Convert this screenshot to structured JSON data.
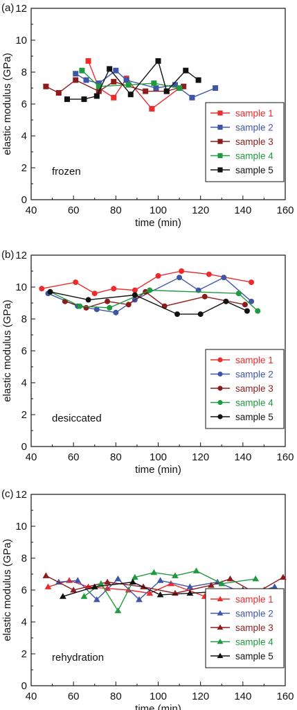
{
  "chart_data": [
    {
      "type": "line",
      "panel_label": "(a)",
      "annotation": "frozen",
      "marker": "square",
      "xlabel": "time (min)",
      "ylabel": "elastic modulus (GPa)",
      "xlim": [
        40,
        160
      ],
      "ylim": [
        0,
        12
      ],
      "xticks": [
        "40",
        "60",
        "80",
        "100",
        "120",
        "140",
        "160"
      ],
      "yticks": [
        "0",
        "2",
        "4",
        "6",
        "8",
        "10",
        "12"
      ],
      "legend_position": "bottom-right",
      "series": [
        {
          "name": "sample 1",
          "color": "#ee2b2b",
          "x": [
            67,
            72,
            79,
            85,
            97,
            110
          ],
          "y": [
            8.7,
            7.0,
            6.4,
            7.6,
            5.7,
            7.0
          ]
        },
        {
          "name": "sample 2",
          "color": "#3f56a8",
          "x": [
            61,
            66,
            72,
            80,
            85,
            99,
            108,
            116,
            127
          ],
          "y": [
            7.9,
            7.5,
            7.3,
            8.1,
            7.5,
            7.0,
            7.2,
            6.4,
            7.0
          ]
        },
        {
          "name": "sample 3",
          "color": "#8b1c1c",
          "x": [
            47,
            53,
            61,
            72,
            79,
            94,
            104,
            112
          ],
          "y": [
            7.1,
            6.7,
            7.5,
            6.8,
            7.4,
            6.8,
            6.8,
            7.1
          ]
        },
        {
          "name": "sample 4",
          "color": "#1f9a3f",
          "x": [
            64,
            72,
            86,
            98,
            110
          ],
          "y": [
            8.1,
            7.1,
            7.2,
            7.3,
            7.0
          ]
        },
        {
          "name": "sample 5",
          "color": "#111111",
          "x": [
            57,
            65,
            71,
            77,
            87,
            100,
            104,
            113,
            119
          ],
          "y": [
            6.3,
            6.3,
            6.5,
            8.2,
            6.6,
            8.7,
            6.8,
            8.1,
            7.5
          ]
        }
      ]
    },
    {
      "type": "line",
      "panel_label": "(b)",
      "annotation": "desiccated",
      "marker": "circle",
      "xlabel": "time (min)",
      "ylabel": "elastic modulus (GPa)",
      "xlim": [
        40,
        160
      ],
      "ylim": [
        0,
        12
      ],
      "xticks": [
        "40",
        "60",
        "80",
        "100",
        "120",
        "140",
        "160"
      ],
      "yticks": [
        "0",
        "2",
        "4",
        "6",
        "8",
        "10",
        "12"
      ],
      "legend_position": "bottom-right",
      "series": [
        {
          "name": "sample 1",
          "color": "#ee2b2b",
          "x": [
            45,
            61,
            70,
            79,
            89,
            100,
            111,
            124,
            144
          ],
          "y": [
            9.9,
            10.3,
            9.6,
            9.9,
            9.8,
            10.7,
            11.0,
            10.8,
            10.3
          ]
        },
        {
          "name": "sample 2",
          "color": "#3f56a8",
          "x": [
            48,
            62,
            71,
            80,
            89,
            110,
            119,
            131,
            144
          ],
          "y": [
            9.6,
            8.8,
            8.6,
            8.4,
            9.2,
            10.6,
            9.8,
            10.6,
            9.1
          ]
        },
        {
          "name": "sample 3",
          "color": "#8b1c1c",
          "x": [
            56,
            66,
            76,
            86,
            94,
            103,
            122,
            141
          ],
          "y": [
            9.1,
            8.7,
            9.1,
            8.9,
            9.7,
            8.8,
            9.4,
            8.9
          ]
        },
        {
          "name": "sample 4",
          "color": "#1f9a3f",
          "x": [
            49,
            63,
            77,
            96,
            138,
            147
          ],
          "y": [
            9.7,
            8.8,
            8.7,
            9.8,
            9.6,
            8.5
          ]
        },
        {
          "name": "sample 5",
          "color": "#111111",
          "x": [
            49,
            67,
            89,
            109,
            120,
            132,
            142
          ],
          "y": [
            9.7,
            9.2,
            9.5,
            8.3,
            8.3,
            9.1,
            8.5
          ]
        }
      ]
    },
    {
      "type": "line",
      "panel_label": "(c)",
      "annotation": "rehydration",
      "marker": "triangle",
      "xlabel": "time (min)",
      "ylabel": "elastic modulus (GPa)",
      "xlim": [
        40,
        160
      ],
      "ylim": [
        0,
        12
      ],
      "xticks": [
        "40",
        "60",
        "80",
        "100",
        "120",
        "140",
        "160"
      ],
      "yticks": [
        "0",
        "2",
        "4",
        "6",
        "8",
        "10",
        "12"
      ],
      "legend_position": "bottom-right",
      "series": [
        {
          "name": "sample 1",
          "color": "#ee2b2b",
          "x": [
            48,
            58,
            67,
            76,
            86,
            96,
            106,
            122,
            137,
            150
          ],
          "y": [
            6.2,
            6.6,
            6.2,
            6.1,
            6.0,
            5.8,
            6.4,
            5.6,
            5.8,
            6.0
          ]
        },
        {
          "name": "sample 2",
          "color": "#3f56a8",
          "x": [
            53,
            62,
            71,
            81,
            91,
            101,
            115,
            128,
            142,
            155
          ],
          "y": [
            6.5,
            6.6,
            5.4,
            6.7,
            5.4,
            6.6,
            6.2,
            6.5,
            5.7,
            6.2
          ]
        },
        {
          "name": "sample 3",
          "color": "#8b1c1c",
          "x": [
            47,
            60,
            76,
            93,
            108,
            125,
            134,
            146,
            159
          ],
          "y": [
            6.9,
            6.0,
            6.5,
            6.2,
            5.8,
            6.3,
            6.7,
            5.8,
            6.8
          ]
        },
        {
          "name": "sample 4",
          "color": "#1f9a3f",
          "x": [
            65,
            73,
            81,
            89,
            98,
            108,
            118,
            130,
            146
          ],
          "y": [
            5.6,
            6.4,
            4.7,
            6.8,
            7.1,
            6.9,
            7.2,
            6.4,
            6.7
          ]
        },
        {
          "name": "sample 5",
          "color": "#111111",
          "x": [
            55,
            70,
            88,
            101,
            115,
            140,
            153
          ],
          "y": [
            5.6,
            6.2,
            6.5,
            5.7,
            5.8,
            6.0,
            5.9
          ]
        }
      ]
    }
  ]
}
